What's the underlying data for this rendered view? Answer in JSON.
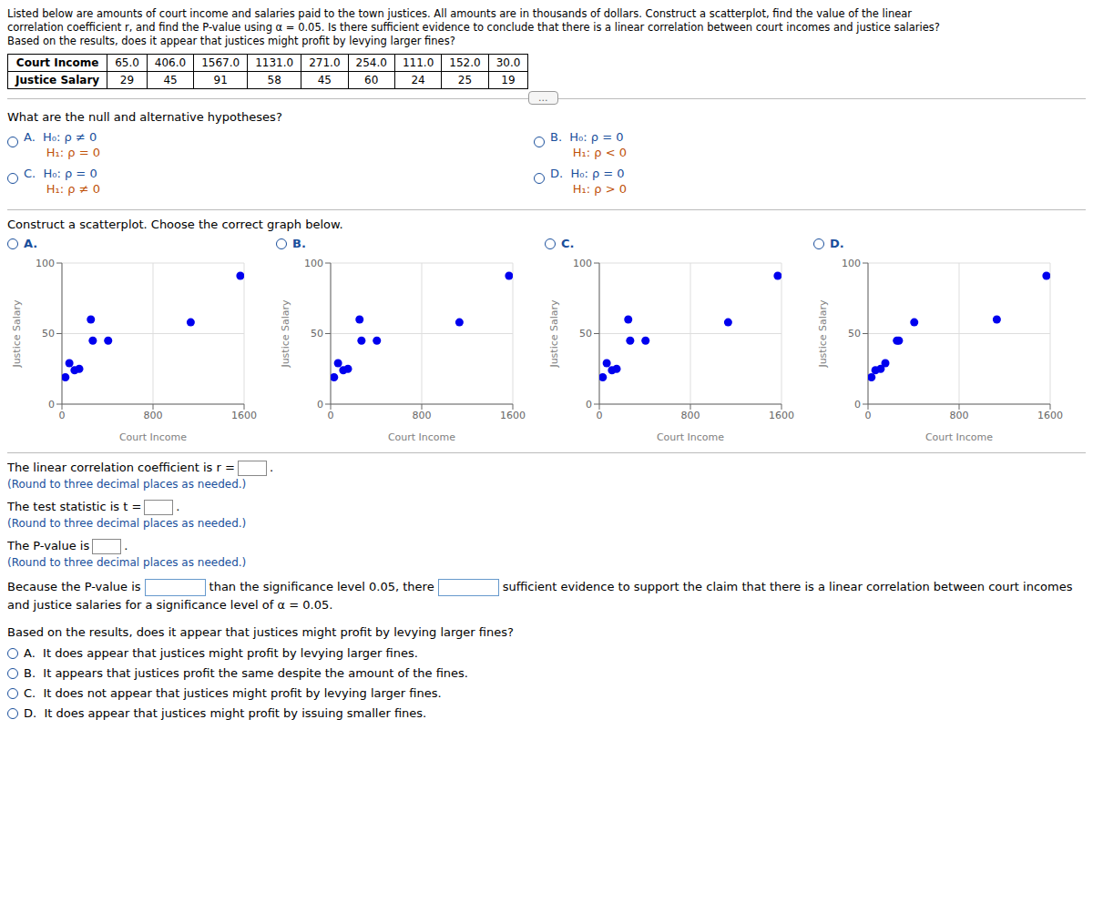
{
  "chart_data": [
    {
      "type": "scatter",
      "title": "A.",
      "x_label": "Court Income",
      "y_label": "Justice Salary",
      "x": [
        65.0,
        406.0,
        1567.0,
        1131.0,
        271.0,
        254.0,
        111.0,
        152.0,
        30.0
      ],
      "values": [
        29,
        45,
        91,
        58,
        45,
        60,
        24,
        25,
        19
      ],
      "xlim": [
        0,
        1600
      ],
      "xticks": [
        0,
        800,
        1600
      ],
      "ylim": [
        0,
        100
      ],
      "yticks": [
        0,
        50,
        100
      ],
      "grid": true,
      "color": "#0000EE",
      "annotations": [
        "Listed below are amounts of court income and salaries paid to the town justices. All amounts are in thousands of dollars. Construct a scatterplot, find the value of the linear",
        "correlation coefficient r, and find the P-value using α = 0.05. Is there sufficient evidence to conclude that there is a linear correlation between court incomes and justice salaries?",
        "Based on the results, does it appear that justices might profit by levying larger fines?",
        "Court Income",
        "65.0",
        "406.0",
        "1567.0",
        "1131.0",
        "271.0",
        "254.0",
        "111.0",
        "152.0",
        "30.0",
        "Justice Salary",
        "29",
        "45",
        "91",
        "58",
        "45",
        "60",
        "24",
        "25",
        "19",
        "...",
        "What are the null and alternative hypotheses?",
        "A.  H₀: ρ ≠ 0",
        "      H₁: ρ = 0",
        "B.  H₀: ρ = 0",
        "      H₁: ρ < 0",
        "C.  H₀: ρ = 0",
        "      H₁: ρ ≠ 0",
        "D.  H₀: ρ = 0",
        "      H₁: ρ > 0",
        "Construct a scatterplot. Choose the correct graph below.",
        "The linear correlation coefficient is r =",
        ".",
        "(Round to three decimal places as needed.)",
        "The test statistic is t =",
        ".",
        "(Round to three decimal places as needed.)",
        "The P-value is",
        ".",
        "(Round to three decimal places as needed.)",
        "Because the P-value is",
        "than the significance level 0.05, there",
        "sufficient evidence to support the claim that there is a linear correlation between court incomes",
        "and justice salaries for a significance level of α = 0.05.",
        "Based on the results, does it appear that justices might profit by levying larger fines?",
        "A.  It does appear that justices might profit by levying larger fines.",
        "B.  It appears that justices profit the same despite the amount of the fines.",
        "C.  It does not appear that justices might profit by levying larger fines.",
        "D.  It does appear that justices might profit by issuing smaller fines."
      ]
    },
    {
      "type": "scatter",
      "title": "B.",
      "x_label": "Court Income",
      "y_label": "Justice Salary",
      "x": [
        30.0,
        65.0,
        111.0,
        152.0,
        254.0,
        271.0,
        406.0,
        1131.0,
        1567.0
      ],
      "values": [
        19,
        29,
        24,
        25,
        60,
        45,
        45,
        58,
        91
      ],
      "xlim": [
        0,
        1600
      ],
      "xticks": [
        0,
        800,
        1600
      ],
      "ylim": [
        0,
        100
      ],
      "yticks": [
        0,
        50,
        100
      ],
      "grid": true,
      "color": "#0000EE"
    },
    {
      "type": "scatter",
      "title": "C.",
      "x_label": "Court Income",
      "y_label": "Justice Salary",
      "x": [
        30.0,
        152.0,
        111.0,
        254.0,
        271.0,
        1131.0,
        1567.0,
        406.0,
        65.0
      ],
      "values": [
        19,
        25,
        24,
        60,
        45,
        58,
        91,
        45,
        29
      ],
      "xlim": [
        0,
        1600
      ],
      "xticks": [
        0,
        800,
        1600
      ],
      "ylim": [
        0,
        100
      ],
      "yticks": [
        0,
        50,
        100
      ],
      "grid": true,
      "color": "#0000EE"
    },
    {
      "type": "scatter",
      "title": "D.",
      "x_label": "Court Income",
      "y_label": "Justice Salary",
      "x": [
        30.0,
        65.0,
        111.0,
        152.0,
        254.0,
        271.0,
        406.0,
        1131.0,
        1567.0
      ],
      "values": [
        19,
        24,
        25,
        29,
        45,
        45,
        58,
        60,
        91
      ],
      "xlim": [
        0,
        1600
      ],
      "xticks": [
        0,
        800,
        1600
      ],
      "ylim": [
        0,
        100
      ],
      "yticks": [
        0,
        50,
        100
      ],
      "grid": true,
      "color": "#0000EE"
    }
  ]
}
